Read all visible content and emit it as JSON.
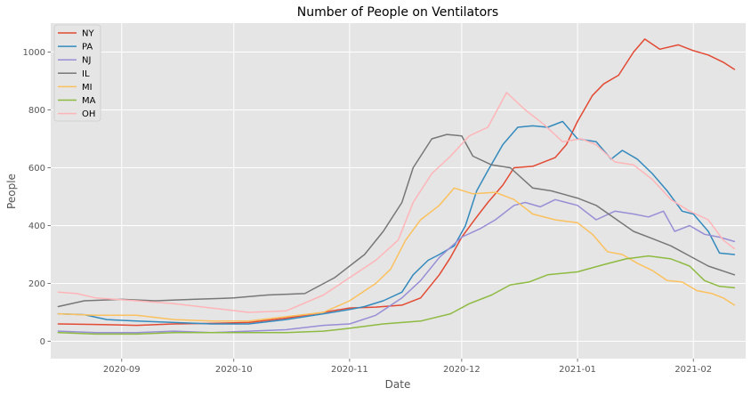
{
  "chart_data": {
    "type": "line",
    "title": "Number of People on Ventilators",
    "xlabel": "Date",
    "ylabel": "People",
    "x_range": [
      "2020-08-13",
      "2021-02-15"
    ],
    "ylim": [
      -60,
      1100
    ],
    "grid": true,
    "legend_position": "top-left",
    "x_ticks": [
      {
        "date": "2020-09-01",
        "label": "2020-09"
      },
      {
        "date": "2020-10-01",
        "label": "2020-10"
      },
      {
        "date": "2020-11-01",
        "label": "2020-11"
      },
      {
        "date": "2020-12-01",
        "label": "2020-12"
      },
      {
        "date": "2021-01-01",
        "label": "2021-01"
      },
      {
        "date": "2021-02-01",
        "label": "2021-02"
      }
    ],
    "y_ticks": [
      0,
      200,
      400,
      600,
      800,
      1000
    ],
    "series": [
      {
        "name": "NY",
        "color": "#E24A33",
        "points": [
          [
            "2020-08-15",
            60
          ],
          [
            "2020-08-25",
            58
          ],
          [
            "2020-09-05",
            55
          ],
          [
            "2020-09-15",
            60
          ],
          [
            "2020-09-25",
            62
          ],
          [
            "2020-10-05",
            65
          ],
          [
            "2020-10-15",
            80
          ],
          [
            "2020-10-25",
            100
          ],
          [
            "2020-11-01",
            115
          ],
          [
            "2020-11-08",
            118
          ],
          [
            "2020-11-15",
            125
          ],
          [
            "2020-11-20",
            150
          ],
          [
            "2020-11-25",
            230
          ],
          [
            "2020-11-28",
            290
          ],
          [
            "2020-12-01",
            360
          ],
          [
            "2020-12-05",
            430
          ],
          [
            "2020-12-08",
            480
          ],
          [
            "2020-12-12",
            540
          ],
          [
            "2020-12-15",
            600
          ],
          [
            "2020-12-20",
            605
          ],
          [
            "2020-12-26",
            635
          ],
          [
            "2020-12-29",
            680
          ],
          [
            "2021-01-01",
            760
          ],
          [
            "2021-01-05",
            850
          ],
          [
            "2021-01-08",
            890
          ],
          [
            "2021-01-12",
            920
          ],
          [
            "2021-01-16",
            1000
          ],
          [
            "2021-01-19",
            1045
          ],
          [
            "2021-01-23",
            1010
          ],
          [
            "2021-01-28",
            1025
          ],
          [
            "2021-02-01",
            1005
          ],
          [
            "2021-02-05",
            990
          ],
          [
            "2021-02-09",
            965
          ],
          [
            "2021-02-12",
            940
          ]
        ]
      },
      {
        "name": "PA",
        "color": "#348ABD",
        "points": [
          [
            "2020-08-15",
            95
          ],
          [
            "2020-08-22",
            92
          ],
          [
            "2020-08-28",
            75
          ],
          [
            "2020-09-05",
            70
          ],
          [
            "2020-09-15",
            65
          ],
          [
            "2020-09-25",
            60
          ],
          [
            "2020-10-05",
            60
          ],
          [
            "2020-10-15",
            75
          ],
          [
            "2020-10-25",
            95
          ],
          [
            "2020-11-01",
            110
          ],
          [
            "2020-11-05",
            120
          ],
          [
            "2020-11-10",
            140
          ],
          [
            "2020-11-15",
            170
          ],
          [
            "2020-11-18",
            230
          ],
          [
            "2020-11-22",
            280
          ],
          [
            "2020-11-25",
            300
          ],
          [
            "2020-11-29",
            330
          ],
          [
            "2020-12-02",
            400
          ],
          [
            "2020-12-05",
            520
          ],
          [
            "2020-12-08",
            590
          ],
          [
            "2020-12-12",
            680
          ],
          [
            "2020-12-16",
            740
          ],
          [
            "2020-12-20",
            745
          ],
          [
            "2020-12-24",
            740
          ],
          [
            "2020-12-28",
            760
          ],
          [
            "2021-01-01",
            700
          ],
          [
            "2021-01-06",
            690
          ],
          [
            "2021-01-10",
            630
          ],
          [
            "2021-01-13",
            660
          ],
          [
            "2021-01-17",
            630
          ],
          [
            "2021-01-21",
            580
          ],
          [
            "2021-01-25",
            520
          ],
          [
            "2021-01-29",
            450
          ],
          [
            "2021-02-01",
            440
          ],
          [
            "2021-02-05",
            380
          ],
          [
            "2021-02-08",
            305
          ],
          [
            "2021-02-12",
            300
          ]
        ]
      },
      {
        "name": "NJ",
        "color": "#988ED5",
        "points": [
          [
            "2020-08-15",
            35
          ],
          [
            "2020-08-25",
            30
          ],
          [
            "2020-09-05",
            30
          ],
          [
            "2020-09-15",
            35
          ],
          [
            "2020-09-25",
            30
          ],
          [
            "2020-10-05",
            35
          ],
          [
            "2020-10-15",
            40
          ],
          [
            "2020-10-25",
            55
          ],
          [
            "2020-11-01",
            60
          ],
          [
            "2020-11-08",
            90
          ],
          [
            "2020-11-15",
            150
          ],
          [
            "2020-11-20",
            210
          ],
          [
            "2020-11-25",
            290
          ],
          [
            "2020-12-01",
            360
          ],
          [
            "2020-12-06",
            390
          ],
          [
            "2020-12-10",
            420
          ],
          [
            "2020-12-15",
            470
          ],
          [
            "2020-12-18",
            480
          ],
          [
            "2020-12-22",
            465
          ],
          [
            "2020-12-26",
            490
          ],
          [
            "2021-01-01",
            470
          ],
          [
            "2021-01-06",
            420
          ],
          [
            "2021-01-11",
            450
          ],
          [
            "2021-01-16",
            440
          ],
          [
            "2021-01-20",
            430
          ],
          [
            "2021-01-24",
            450
          ],
          [
            "2021-01-27",
            380
          ],
          [
            "2021-01-31",
            400
          ],
          [
            "2021-02-04",
            370
          ],
          [
            "2021-02-08",
            360
          ],
          [
            "2021-02-12",
            345
          ]
        ]
      },
      {
        "name": "IL",
        "color": "#777777",
        "points": [
          [
            "2020-08-15",
            120
          ],
          [
            "2020-08-22",
            140
          ],
          [
            "2020-09-01",
            145
          ],
          [
            "2020-09-10",
            140
          ],
          [
            "2020-09-20",
            145
          ],
          [
            "2020-10-01",
            150
          ],
          [
            "2020-10-10",
            160
          ],
          [
            "2020-10-20",
            165
          ],
          [
            "2020-10-28",
            220
          ],
          [
            "2020-11-05",
            300
          ],
          [
            "2020-11-10",
            380
          ],
          [
            "2020-11-15",
            480
          ],
          [
            "2020-11-18",
            600
          ],
          [
            "2020-11-23",
            700
          ],
          [
            "2020-11-27",
            715
          ],
          [
            "2020-12-01",
            710
          ],
          [
            "2020-12-04",
            640
          ],
          [
            "2020-12-09",
            610
          ],
          [
            "2020-12-14",
            600
          ],
          [
            "2020-12-20",
            530
          ],
          [
            "2020-12-25",
            520
          ],
          [
            "2021-01-01",
            495
          ],
          [
            "2021-01-06",
            470
          ],
          [
            "2021-01-11",
            425
          ],
          [
            "2021-01-16",
            380
          ],
          [
            "2021-01-21",
            355
          ],
          [
            "2021-01-26",
            330
          ],
          [
            "2021-01-31",
            295
          ],
          [
            "2021-02-05",
            260
          ],
          [
            "2021-02-12",
            230
          ]
        ]
      },
      {
        "name": "MI",
        "color": "#FBC15E",
        "points": [
          [
            "2020-08-15",
            95
          ],
          [
            "2020-08-25",
            90
          ],
          [
            "2020-09-05",
            90
          ],
          [
            "2020-09-15",
            75
          ],
          [
            "2020-09-25",
            70
          ],
          [
            "2020-10-05",
            70
          ],
          [
            "2020-10-15",
            85
          ],
          [
            "2020-10-25",
            100
          ],
          [
            "2020-11-01",
            140
          ],
          [
            "2020-11-08",
            200
          ],
          [
            "2020-11-12",
            250
          ],
          [
            "2020-11-16",
            350
          ],
          [
            "2020-11-20",
            420
          ],
          [
            "2020-11-25",
            470
          ],
          [
            "2020-11-29",
            530
          ],
          [
            "2020-12-04",
            510
          ],
          [
            "2020-12-10",
            515
          ],
          [
            "2020-12-15",
            490
          ],
          [
            "2020-12-20",
            440
          ],
          [
            "2020-12-26",
            420
          ],
          [
            "2021-01-01",
            410
          ],
          [
            "2021-01-05",
            370
          ],
          [
            "2021-01-09",
            310
          ],
          [
            "2021-01-13",
            300
          ],
          [
            "2021-01-17",
            270
          ],
          [
            "2021-01-21",
            245
          ],
          [
            "2021-01-25",
            210
          ],
          [
            "2021-01-29",
            205
          ],
          [
            "2021-02-02",
            175
          ],
          [
            "2021-02-06",
            165
          ],
          [
            "2021-02-09",
            150
          ],
          [
            "2021-02-12",
            125
          ]
        ]
      },
      {
        "name": "MA",
        "color": "#8EBA42",
        "points": [
          [
            "2020-08-15",
            30
          ],
          [
            "2020-08-25",
            25
          ],
          [
            "2020-09-05",
            25
          ],
          [
            "2020-09-15",
            30
          ],
          [
            "2020-09-25",
            30
          ],
          [
            "2020-10-05",
            30
          ],
          [
            "2020-10-15",
            30
          ],
          [
            "2020-10-25",
            35
          ],
          [
            "2020-11-01",
            45
          ],
          [
            "2020-11-10",
            60
          ],
          [
            "2020-11-20",
            70
          ],
          [
            "2020-11-28",
            95
          ],
          [
            "2020-12-03",
            130
          ],
          [
            "2020-12-09",
            160
          ],
          [
            "2020-12-14",
            195
          ],
          [
            "2020-12-19",
            205
          ],
          [
            "2020-12-24",
            230
          ],
          [
            "2021-01-01",
            240
          ],
          [
            "2021-01-08",
            265
          ],
          [
            "2021-01-14",
            285
          ],
          [
            "2021-01-20",
            295
          ],
          [
            "2021-01-26",
            285
          ],
          [
            "2021-01-31",
            260
          ],
          [
            "2021-02-04",
            210
          ],
          [
            "2021-02-08",
            190
          ],
          [
            "2021-02-12",
            185
          ]
        ]
      },
      {
        "name": "OH",
        "color": "#FFB5B8",
        "points": [
          [
            "2020-08-15",
            170
          ],
          [
            "2020-08-20",
            165
          ],
          [
            "2020-08-25",
            150
          ],
          [
            "2020-09-05",
            140
          ],
          [
            "2020-09-15",
            130
          ],
          [
            "2020-09-25",
            115
          ],
          [
            "2020-10-05",
            100
          ],
          [
            "2020-10-15",
            105
          ],
          [
            "2020-10-25",
            160
          ],
          [
            "2020-11-01",
            220
          ],
          [
            "2020-11-08",
            280
          ],
          [
            "2020-11-14",
            350
          ],
          [
            "2020-11-18",
            480
          ],
          [
            "2020-11-23",
            580
          ],
          [
            "2020-11-28",
            640
          ],
          [
            "2020-12-03",
            710
          ],
          [
            "2020-12-08",
            740
          ],
          [
            "2020-12-13",
            860
          ],
          [
            "2020-12-18",
            800
          ],
          [
            "2020-12-23",
            750
          ],
          [
            "2020-12-28",
            690
          ],
          [
            "2021-01-02",
            700
          ],
          [
            "2021-01-06",
            680
          ],
          [
            "2021-01-11",
            620
          ],
          [
            "2021-01-16",
            610
          ],
          [
            "2021-01-21",
            560
          ],
          [
            "2021-01-26",
            490
          ],
          [
            "2021-01-31",
            450
          ],
          [
            "2021-02-05",
            420
          ],
          [
            "2021-02-09",
            350
          ],
          [
            "2021-02-12",
            320
          ]
        ]
      }
    ]
  }
}
